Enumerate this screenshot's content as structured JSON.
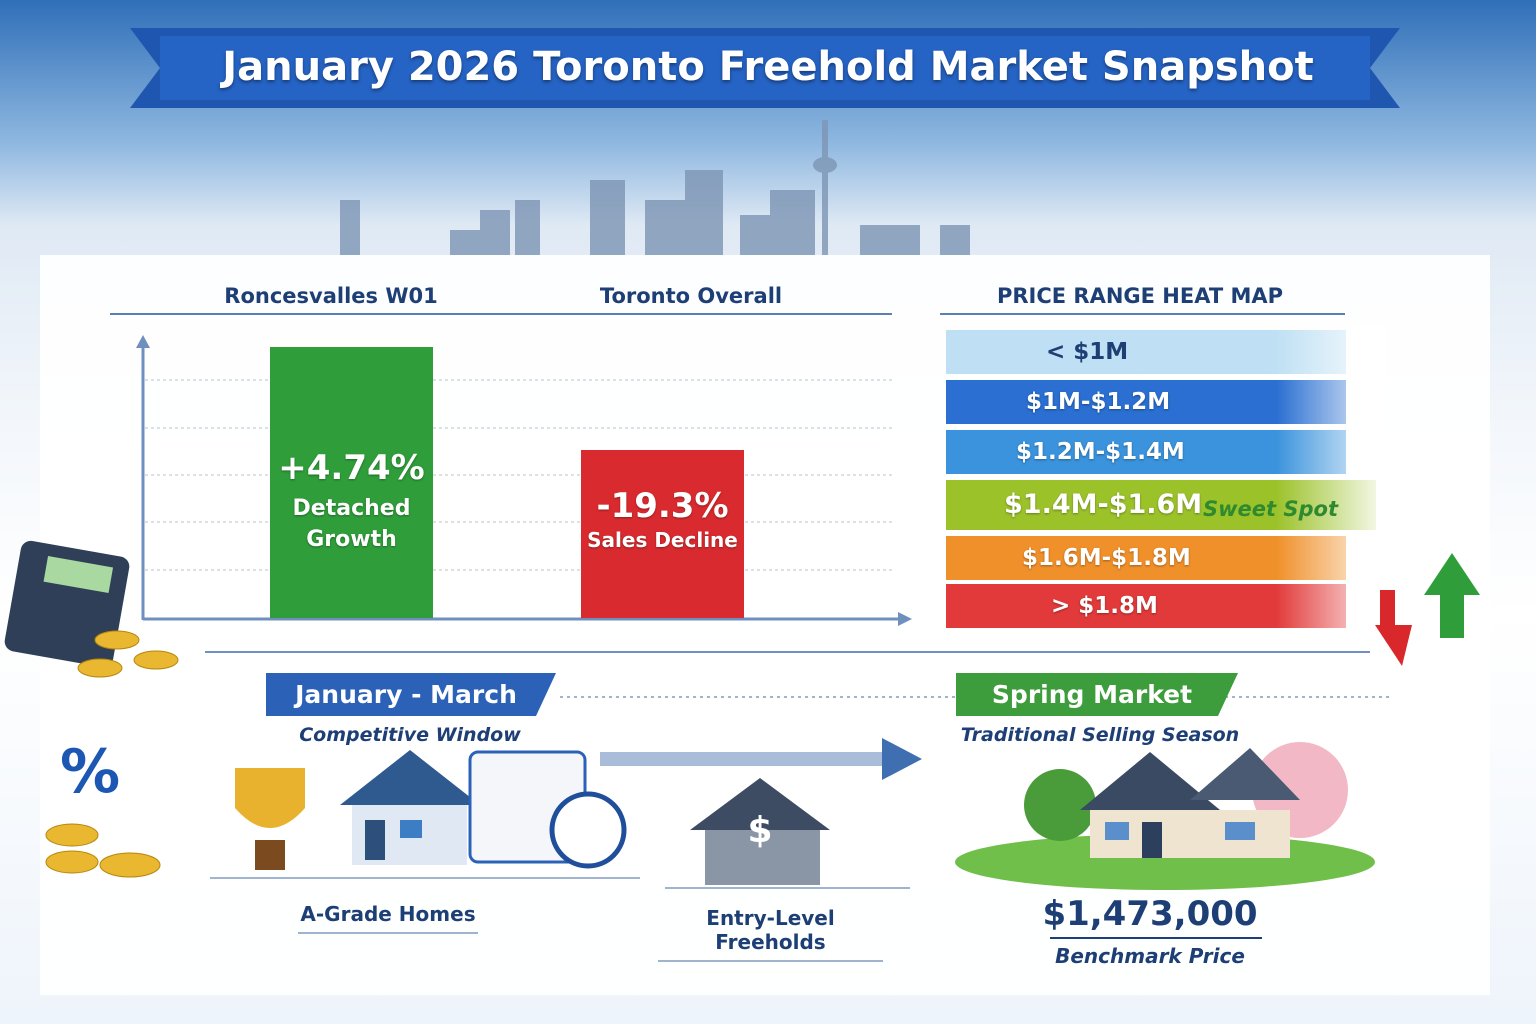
{
  "title": "January 2026 Toronto Freehold Market Snapshot",
  "comparison": {
    "columns": [
      {
        "heading": "Roncesvalles W01",
        "value": "+4.74%",
        "label": "Detached Growth"
      },
      {
        "heading": "Toronto Overall",
        "value": "-19.3%",
        "label": "Sales Decline"
      }
    ]
  },
  "heat_map": {
    "title": "PRICE RANGE HEAT MAP",
    "ranges": [
      "< $1M",
      "$1M-$1.2M",
      "$1.2M-$1.4M",
      "$1.4M-$1.6M",
      "$1.6M-$1.8M",
      "> $1.8M"
    ],
    "highlight_note": "Sweet Spot"
  },
  "timeline": {
    "early": {
      "title": "January - March",
      "subtitle": "Competitive Window"
    },
    "spring": {
      "title": "Spring Market",
      "subtitle": "Traditional Selling Season"
    }
  },
  "items": [
    "A-Grade Homes",
    "Entry-Level Freeholds"
  ],
  "benchmark": {
    "value": "$1,473,000",
    "label": "Benchmark Price"
  }
}
